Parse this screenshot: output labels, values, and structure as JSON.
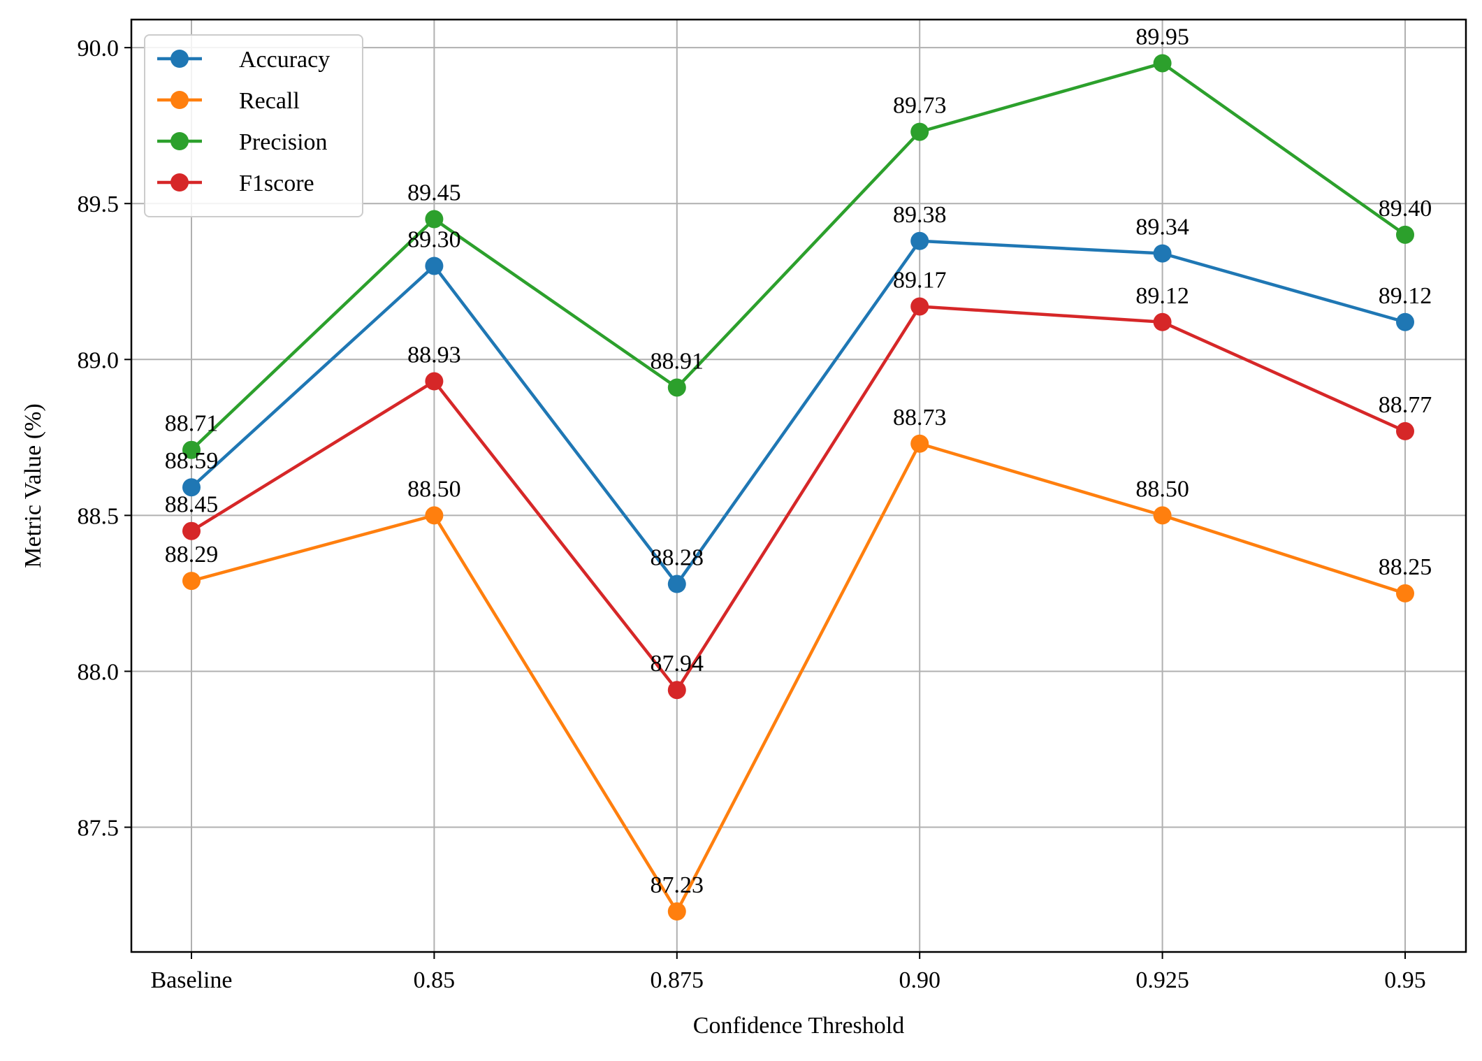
{
  "chart_data": {
    "type": "line",
    "title": "",
    "xlabel": "Confidence Threshold",
    "ylabel": "Metric Value (%)",
    "categories": [
      "Baseline",
      "0.85",
      "0.875",
      "0.90",
      "0.925",
      "0.95"
    ],
    "ylim": [
      87.1,
      90.09
    ],
    "yticks": [
      "87.5",
      "88.0",
      "88.5",
      "89.0",
      "89.5",
      "90.0"
    ],
    "grid": true,
    "legend_position": "top-left",
    "series": [
      {
        "name": "Accuracy",
        "color": "#1f77b4",
        "values": [
          88.59,
          89.3,
          88.28,
          89.38,
          89.34,
          89.12
        ],
        "labels": [
          "88.59",
          "89.30",
          "88.28",
          "89.38",
          "89.34",
          "89.12"
        ]
      },
      {
        "name": "Recall",
        "color": "#ff7f0e",
        "values": [
          88.29,
          88.5,
          87.23,
          88.73,
          88.5,
          88.25
        ],
        "labels": [
          "88.29",
          "88.50",
          "87.23",
          "88.73",
          "88.50",
          "88.25"
        ]
      },
      {
        "name": "Precision",
        "color": "#2ca02c",
        "values": [
          88.71,
          89.45,
          88.91,
          89.73,
          89.95,
          89.4
        ],
        "labels": [
          "88.71",
          "89.45",
          "88.91",
          "89.73",
          "89.95",
          "89.40"
        ]
      },
      {
        "name": "F1score",
        "color": "#d62728",
        "values": [
          88.45,
          88.93,
          87.94,
          89.17,
          89.12,
          88.77
        ],
        "labels": [
          "88.45",
          "88.93",
          "87.94",
          "89.17",
          "89.12",
          "88.77"
        ]
      }
    ]
  }
}
